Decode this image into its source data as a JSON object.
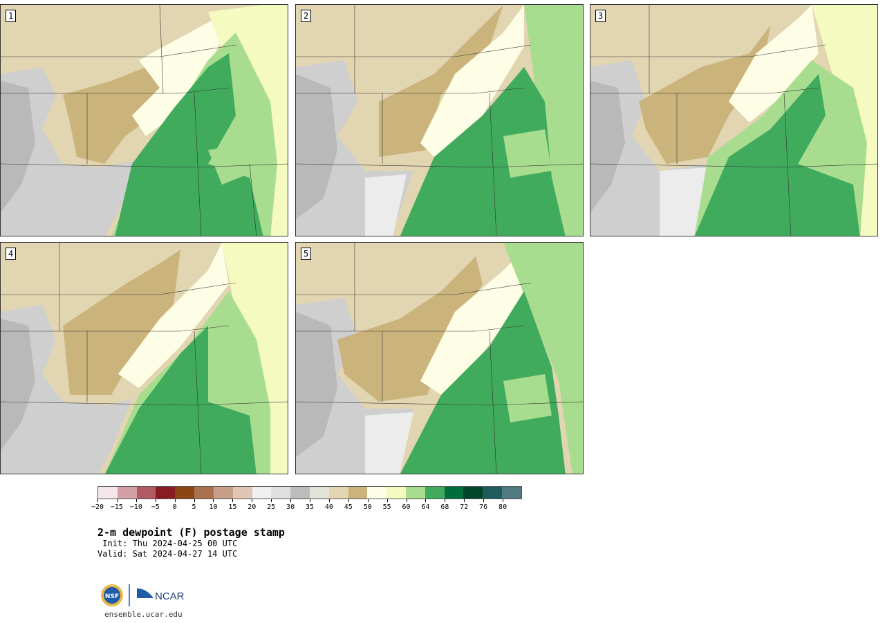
{
  "panels": [
    {
      "label": "1"
    },
    {
      "label": "2"
    },
    {
      "label": "3"
    },
    {
      "label": "4"
    },
    {
      "label": "5"
    }
  ],
  "colorbar": {
    "colors": [
      "#f4e6ea",
      "#d4a0a8",
      "#b05a62",
      "#8a1b23",
      "#8b4513",
      "#a9714e",
      "#c8a08a",
      "#e1c6b5",
      "#f0f0f0",
      "#e0e0e0",
      "#bdbdbd",
      "#e2e2d6",
      "#e2d5b1",
      "#cbb47c",
      "#fefee6",
      "#f5fbc0",
      "#a8dd8f",
      "#41ab5d",
      "#006d3c",
      "#00442a",
      "#1f5a5c",
      "#4e7a80"
    ],
    "tick_labels": [
      "−20",
      "−15",
      "−10",
      "−5",
      "0",
      "5",
      "10",
      "15",
      "20",
      "25",
      "30",
      "35",
      "40",
      "45",
      "50",
      "55",
      "60",
      "64",
      "68",
      "72",
      "76",
      "80"
    ]
  },
  "title": "2-m dewpoint (F) postage stamp",
  "init": " Init: Thu 2024-04-25 00 UTC",
  "valid": "Valid: Sat 2024-04-27 14 UTC",
  "logos": {
    "nsf": "NSF",
    "ncar": "NCAR"
  },
  "site": "ensemble.ucar.edu"
}
